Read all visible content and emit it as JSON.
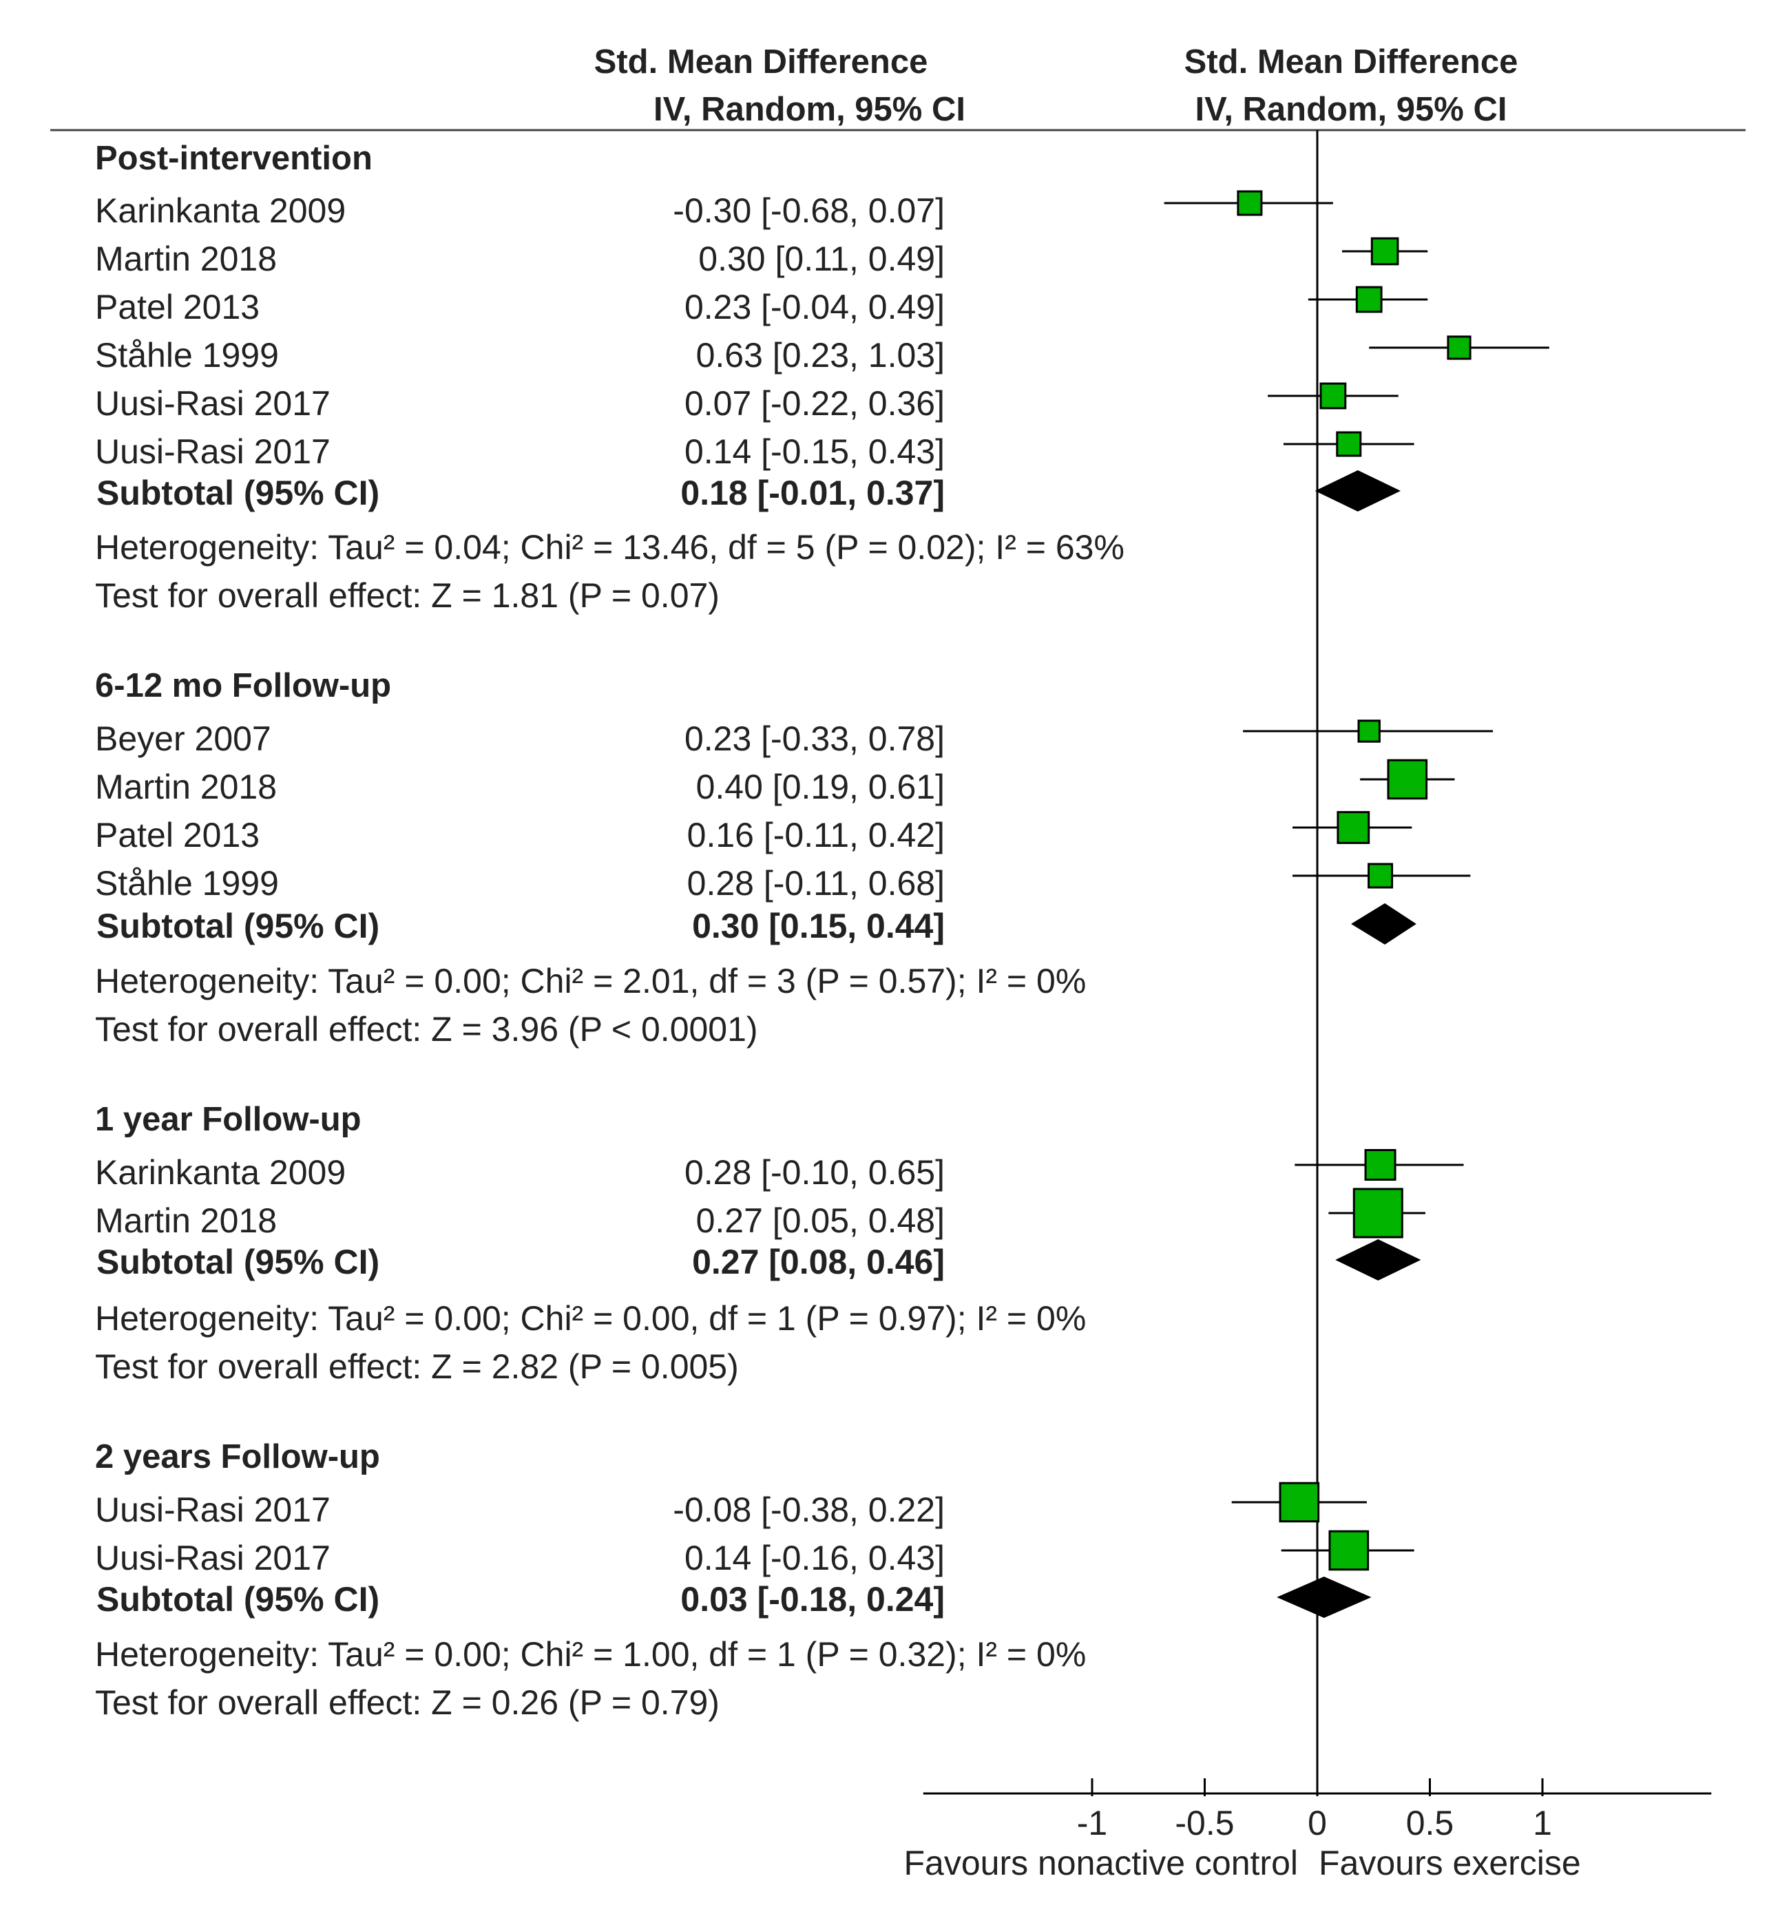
{
  "chart_data": {
    "type": "forest",
    "header": {
      "table_col_title": "Std. Mean Difference",
      "table_col_subtitle": "IV, Random, 95% CI",
      "plot_col_title": "Std. Mean Difference",
      "plot_col_subtitle": "IV, Random, 95% CI"
    },
    "groups": [
      {
        "title": "Post-intervention",
        "studies": [
          {
            "name": "Karinkanta 2009",
            "ci_text": "-0.30 [-0.68, 0.07]",
            "est": -0.3,
            "lo": -0.68,
            "hi": 0.07,
            "weight": 1
          },
          {
            "name": "Martin 2018",
            "ci_text": "0.30 [0.11, 0.49]",
            "est": 0.3,
            "lo": 0.11,
            "hi": 0.49,
            "weight": 1.2
          },
          {
            "name": "Patel 2013",
            "ci_text": "0.23 [-0.04, 0.49]",
            "est": 0.23,
            "lo": -0.04,
            "hi": 0.49,
            "weight": 1.1
          },
          {
            "name": "Ståhle 1999",
            "ci_text": "0.63 [0.23, 1.03]",
            "est": 0.63,
            "lo": 0.23,
            "hi": 1.03,
            "weight": 0.9
          },
          {
            "name": "Uusi-Rasi 2017",
            "ci_text": "0.07 [-0.22, 0.36]",
            "est": 0.07,
            "lo": -0.22,
            "hi": 0.36,
            "weight": 1.1
          },
          {
            "name": "Uusi-Rasi 2017",
            "ci_text": "0.14 [-0.15, 0.43]",
            "est": 0.14,
            "lo": -0.15,
            "hi": 0.43,
            "weight": 1.0
          }
        ],
        "subtotal": {
          "label": "Subtotal (95% CI)",
          "ci_text": "0.18 [-0.01, 0.37]",
          "est": 0.18,
          "lo": -0.01,
          "hi": 0.37
        },
        "heterogeneity": "Heterogeneity: Tau² = 0.04; Chi² = 13.46, df = 5 (P = 0.02); I² = 63%",
        "overall": "Test for overall effect: Z = 1.81 (P = 0.07)"
      },
      {
        "title": "6-12 mo Follow-up",
        "studies": [
          {
            "name": "Beyer 2007",
            "ci_text": "0.23 [-0.33, 0.78]",
            "est": 0.23,
            "lo": -0.33,
            "hi": 0.78,
            "weight": 0.8
          },
          {
            "name": "Martin 2018",
            "ci_text": "0.40 [0.19, 0.61]",
            "est": 0.4,
            "lo": 0.19,
            "hi": 0.61,
            "weight": 2.2
          },
          {
            "name": "Patel 2013",
            "ci_text": "0.16 [-0.11, 0.42]",
            "est": 0.16,
            "lo": -0.11,
            "hi": 0.42,
            "weight": 1.6
          },
          {
            "name": "Ståhle 1999",
            "ci_text": "0.28 [-0.11, 0.68]",
            "est": 0.28,
            "lo": -0.11,
            "hi": 0.68,
            "weight": 1.0
          }
        ],
        "subtotal": {
          "label": "Subtotal (95% CI)",
          "ci_text": "0.30 [0.15, 0.44]",
          "est": 0.3,
          "lo": 0.15,
          "hi": 0.44
        },
        "heterogeneity": "Heterogeneity: Tau² = 0.00; Chi² = 2.01, df = 3 (P = 0.57); I² = 0%",
        "overall": "Test for overall effect: Z = 3.96 (P < 0.0001)"
      },
      {
        "title": "1 year Follow-up",
        "studies": [
          {
            "name": "Karinkanta 2009",
            "ci_text": "0.28 [-0.10, 0.65]",
            "est": 0.28,
            "lo": -0.1,
            "hi": 0.65,
            "weight": 1.5
          },
          {
            "name": "Martin 2018",
            "ci_text": "0.27 [0.05, 0.48]",
            "est": 0.27,
            "lo": 0.05,
            "hi": 0.48,
            "weight": 3.0
          }
        ],
        "subtotal": {
          "label": "Subtotal (95% CI)",
          "ci_text": "0.27 [0.08, 0.46]",
          "est": 0.27,
          "lo": 0.08,
          "hi": 0.46
        },
        "heterogeneity": "Heterogeneity: Tau² = 0.00; Chi² = 0.00, df = 1 (P = 0.97); I² = 0%",
        "overall": "Test for overall effect: Z = 2.82 (P = 0.005)"
      },
      {
        "title": "2 years Follow-up",
        "studies": [
          {
            "name": "Uusi-Rasi 2017",
            "ci_text": "-0.08 [-0.38, 0.22]",
            "est": -0.08,
            "lo": -0.38,
            "hi": 0.22,
            "weight": 2.2
          },
          {
            "name": "Uusi-Rasi 2017",
            "ci_text": "0.14 [-0.16, 0.43]",
            "est": 0.14,
            "lo": -0.16,
            "hi": 0.43,
            "weight": 2.2
          }
        ],
        "subtotal": {
          "label": "Subtotal (95% CI)",
          "ci_text": "0.03 [-0.18, 0.24]",
          "est": 0.03,
          "lo": -0.18,
          "hi": 0.24
        },
        "heterogeneity": "Heterogeneity: Tau² = 0.00; Chi² = 1.00, df = 1 (P = 0.32); I² = 0%",
        "overall": "Test for overall effect: Z = 0.26 (P = 0.79)"
      }
    ],
    "x_axis": {
      "range": [
        -1.75,
        1.75
      ],
      "ticks": [
        -1,
        -0.5,
        0,
        0.5,
        1
      ],
      "tick_labels": [
        "-1",
        "-0.5",
        "0",
        "0.5",
        "1"
      ],
      "favours_left": "Favours nonactive control",
      "favours_right": "Favours exercise"
    },
    "colors": {
      "marker": "#00b400",
      "diamond": "#000000",
      "line": "#000000"
    }
  }
}
